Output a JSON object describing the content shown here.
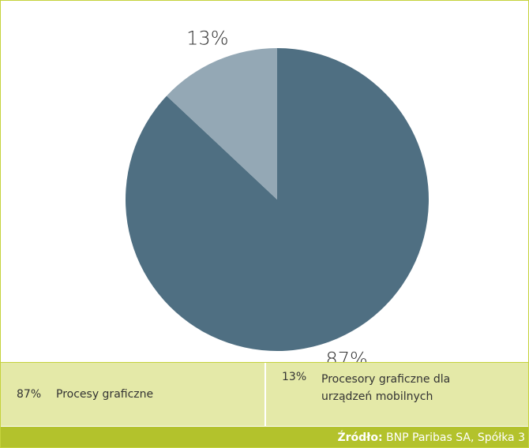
{
  "chart_data": {
    "type": "pie",
    "categories": [
      "Procesy graficzne",
      "Procesory graficzne dla urządzeń mobilnych"
    ],
    "values": [
      87,
      13
    ],
    "value_labels": [
      "87%",
      "13%"
    ],
    "colors": [
      "#4f6f82",
      "#94a8b5"
    ],
    "source_label": "Źródło:",
    "source": "BNP Paribas SA, Spółka 3"
  }
}
